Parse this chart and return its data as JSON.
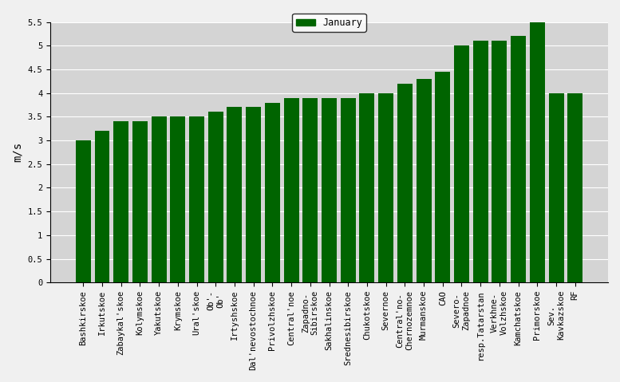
{
  "categories": [
    "Bashkirskoe",
    "Irkutskoe",
    "Zabaykal'skoe",
    "Kolymskoe",
    "Yakutskoe",
    "Krymskoe",
    "Ural'skoe",
    "Ob'-",
    "Irtyshskoe",
    "Dal'nevostochnoe",
    "Privolzhskoe",
    "Central'noe",
    "Zapadno-",
    "Sakhalinskoe",
    "Srednesibirskoe",
    "Chukotskoe",
    "Severnoe",
    "Central'no-",
    "Murmanskoe",
    "CAO",
    "Severo-",
    "resp.Tatarstan",
    "Verkhne-",
    "Kamchatskoe",
    "Primorskoe",
    "Sev.",
    "RF"
  ],
  "categories_line2": [
    "",
    "",
    "",
    "",
    "",
    "",
    "",
    "Ob'",
    "",
    "",
    "",
    "",
    "Sibirskoe",
    "",
    "",
    "",
    "",
    "Chernozemnoe",
    "",
    "",
    "Zapadnoe",
    "",
    "Volzhskoe",
    "",
    "",
    "Kavkazskoe",
    ""
  ],
  "values": [
    3.0,
    3.2,
    3.4,
    3.4,
    3.5,
    3.5,
    3.5,
    3.6,
    3.7,
    3.7,
    3.8,
    3.9,
    3.9,
    3.9,
    3.9,
    4.0,
    4.0,
    4.2,
    4.3,
    4.45,
    5.0,
    5.1,
    5.1,
    5.2,
    5.5,
    4.0,
    4.0
  ],
  "bar_color": "#006400",
  "ylabel": "m/s",
  "ylim_max": 5.5,
  "yticks": [
    0,
    0.5,
    1.0,
    1.5,
    2.0,
    2.5,
    3.0,
    3.5,
    4.0,
    4.5,
    5.0,
    5.5
  ],
  "legend_label": "January",
  "legend_color": "#006400",
  "bg_color": "#d4d4d4",
  "fig_color": "#f0f0f0",
  "tick_fontsize": 7.5,
  "ylabel_fontsize": 10
}
